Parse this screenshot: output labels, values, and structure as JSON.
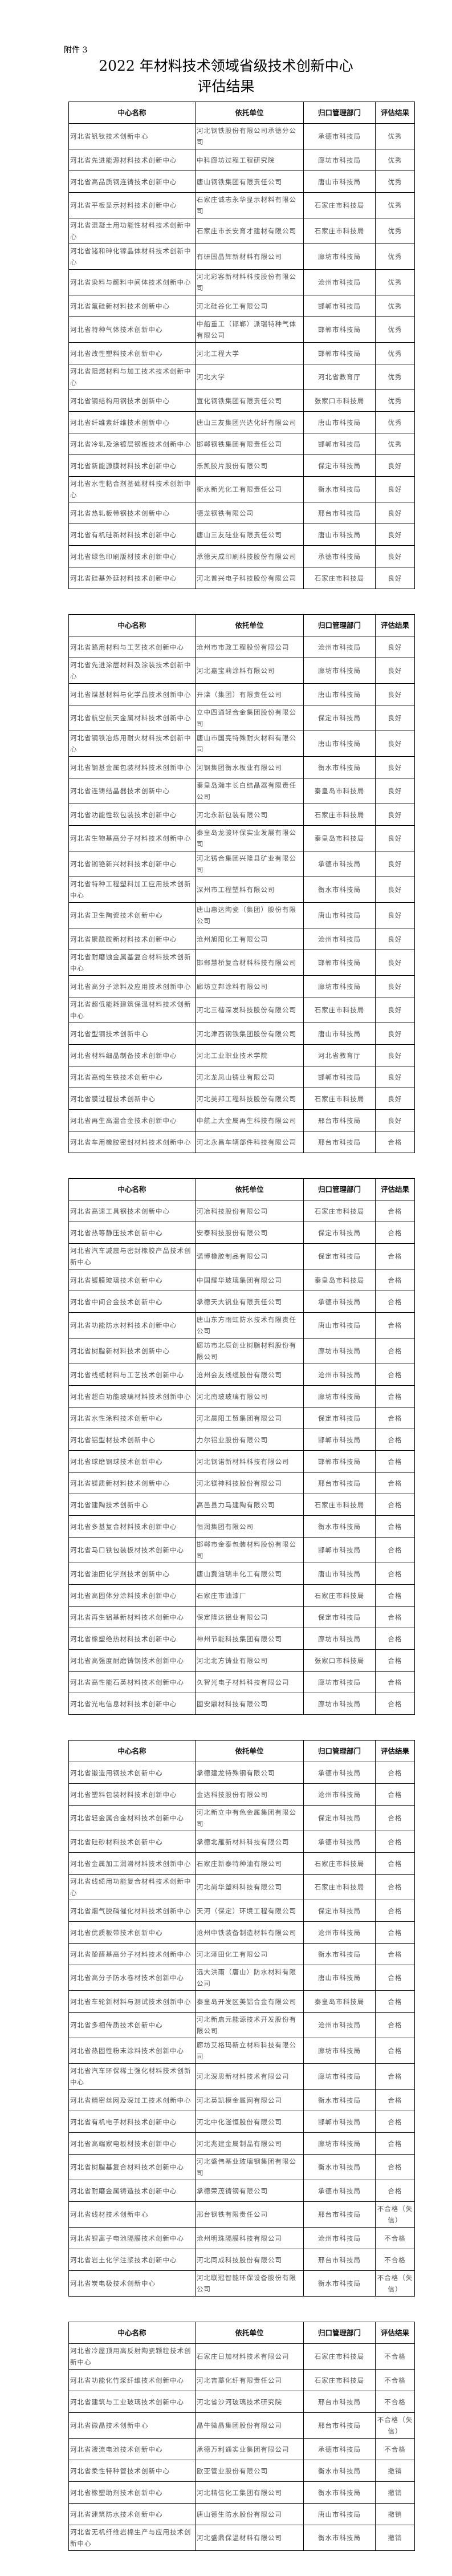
{
  "attachment": "附件 3",
  "title_line1": "2022 年材料技术领域省级技术创新中心",
  "title_line2": "评估结果",
  "headers": [
    "中心名称",
    "依托单位",
    "归口管理部门",
    "评估结果"
  ],
  "tables": [
    {
      "rows": [
        [
          "河北省钒钛技术创新中心",
          "河北钢铁股份有限公司承德分公司",
          "承德市科技局",
          "优秀"
        ],
        [
          "河北省先进能源材料技术创新中心",
          "中科廊坊过程工程研究院",
          "廊坊市科技局",
          "优秀"
        ],
        [
          "河北省高品质钢连铸技术创新中心",
          "唐山钢铁集团有限责任公司",
          "唐山市科技局",
          "优秀"
        ],
        [
          "河北省平板显示材料技术创新中心",
          "石家庄诚志永华显示材料有限公司",
          "石家庄市科技局",
          "优秀"
        ],
        [
          "河北省混凝土用功能性材料技术创新中心",
          "石家庄市长安育才建材有限公司",
          "石家庄市科技局",
          "优秀"
        ],
        [
          "河北省锗和砷化镓晶体材料技术创新中心",
          "有研国晶辉新材料有限公司",
          "廊坊市科技局",
          "优秀"
        ],
        [
          "河北省染料与颜料中间体技术创新中心",
          "河北彩客新材料科技股份有限公司",
          "沧州市科技局",
          "优秀"
        ],
        [
          "河北省氟硅新材料技术创新中心",
          "河北硅谷化工有限公司",
          "邯郸市科技局",
          "优秀"
        ],
        [
          "河北省特种气体技术创新中心",
          "中船重工（邯郸）派瑞特种气体有限公司",
          "邯郸市科技局",
          "优秀"
        ],
        [
          "河北省改性塑料技术创新中心",
          "河北工程大学",
          "邯郸市科技局",
          "优秀"
        ],
        [
          "河北省阻燃材料与加工技术技术创新中心",
          "河北大学",
          "河北省教育厅",
          "优秀"
        ],
        [
          "河北省钢结构用钢技术创新中心",
          "宣化钢铁集团有限责任公司",
          "张家口市科技局",
          "优秀"
        ],
        [
          "河北省纤维素纤维技术创新中心",
          "唐山三友集团兴达化纤有限公司",
          "唐山市科技局",
          "优秀"
        ],
        [
          "河北省冷轧及涂镀层钢板技术创新中心",
          "邯郸钢铁集团有限责任公司",
          "邯郸市科技局",
          "优秀"
        ],
        [
          "河北省新能源膜材料技术创新中心",
          "乐凯胶片股份有限公司",
          "保定市科技局",
          "良好"
        ],
        [
          "河北省水性粘合剂基础材料技术创新中心",
          "衡水新光化工有限责任公司",
          "衡水市科技局",
          "良好"
        ],
        [
          "河北省热轧板带钢技术创新中心",
          "德龙钢铁有限公司",
          "邢台市科技局",
          "良好"
        ],
        [
          "河北省有机硅新材料技术创新中心",
          "唐山三友硅业有限责任公司",
          "唐山市科技局",
          "良好"
        ],
        [
          "河北省绿色印刷版材技术创新中心",
          "承德天成印刷科技股份有限公司",
          "承德市科技局",
          "良好"
        ],
        [
          "河北省硅基外延材料技术创新中心",
          "河北普兴电子科技股份有限公司",
          "石家庄市科技局",
          "良好"
        ]
      ]
    },
    {
      "rows": [
        [
          "河北省路用材料与工艺技术创新中心",
          "沧州市市政工程股份有限公司",
          "沧州市科技局",
          "良好"
        ],
        [
          "河北省先进涂层材料及涂装技术创新中心",
          "河北嘉宝莉涂料有限公司",
          "廊坊市科技局",
          "良好"
        ],
        [
          "河北省煤基材料与化学品技术创新中心",
          "开滦（集团）有限责任公司",
          "唐山市科技局",
          "良好"
        ],
        [
          "河北省航空航天金属材料技术创新中心",
          "立中四通轻合金集团股份有限公司",
          "保定市科技局",
          "良好"
        ],
        [
          "河北省钢铁冶炼用耐火材料技术创新中心",
          "唐山市国亮特殊耐火材料有限公司",
          "唐山市科技局",
          "良好"
        ],
        [
          "河北省钢基金属包装材料技术创新中心",
          "河钢集团衡水板业有限公司",
          "衡水市科技局",
          "良好"
        ],
        [
          "河北省连铸结晶器技术创新中心",
          "秦皇岛瀚丰长白结晶器有限责任公司",
          "秦皇岛市科技局",
          "良好"
        ],
        [
          "河北省功能性软包装技术创新中心",
          "河北永新包装有限公司",
          "石家庄市科技局",
          "良好"
        ],
        [
          "河北省生物基高分子材料技术创新中心",
          "秦皇岛龙骏环保实业发展有限公司",
          "秦皇岛市科技局",
          "良好"
        ],
        [
          "河北省铷铯新兴材料技术创新中心",
          "河北铸合集团兴隆县矿业有限公司",
          "承德市科技局",
          "良好"
        ],
        [
          "河北省特种工程塑料加工应用技术创新中心",
          "深州市工程塑料有限公司",
          "衡水市科技局",
          "良好"
        ],
        [
          "河北省卫生陶瓷技术创新中心",
          "唐山惠达陶瓷（集团）股份有限公司",
          "唐山市科技局",
          "良好"
        ],
        [
          "河北省聚酰胺新材料技术创新中心",
          "沧州旭阳化工有限公司",
          "沧州市科技局",
          "良好"
        ],
        [
          "河北省耐磨蚀金属基复合材料技术创新中心",
          "邯郸慧桥复合材料科技有限公司",
          "邯郸市科技局",
          "良好"
        ],
        [
          "河北省高分子涂料及应用技术创新中心",
          "廊坊立邦涂料有限公司",
          "廊坊市科技局",
          "良好"
        ],
        [
          "河北省超低能耗建筑保温材料技术创新中心",
          "河北三楷深发科技股份有限公司",
          "石家庄市科技局",
          "良好"
        ],
        [
          "河北省型钢技术创新中心",
          "河北津西钢铁集团股份有限公司",
          "唐山市科技局",
          "良好"
        ],
        [
          "河北省材料细晶制备技术创新中心",
          "河北工业职业技术学院",
          "河北省教育厅",
          "良好"
        ],
        [
          "河北省高纯生铁技术创新中心",
          "河北龙凤山铸业有限公司",
          "邯郸市科技局",
          "良好"
        ],
        [
          "河北省膜过程技术创新中心",
          "河北美邦工程科技股份有限公司",
          "石家庄市科技局",
          "良好"
        ],
        [
          "河北省再生高温合金技术创新中心",
          "中航上大金属再生科技有限公司",
          "邢台市科技局",
          "良好"
        ],
        [
          "河北省车用橡胶密封材料技术创新中心",
          "河北永昌车辆部件科技有限公司",
          "邢台市科技局",
          "合格"
        ]
      ]
    },
    {
      "rows": [
        [
          "河北省高速工具钢技术创新中心",
          "河冶科技股份有限公司",
          "石家庄市科技局",
          "合格"
        ],
        [
          "河北省热等静压技术创新中心",
          "安泰科技股份有限公司",
          "保定市科技局",
          "合格"
        ],
        [
          "河北省汽车减震与密封橡胶产品技术创新中心",
          "诺博橡胶制品有限公司",
          "保定市科技局",
          "合格"
        ],
        [
          "河北省镀膜玻璃技术创新中心",
          "中国耀华玻璃集团有限公司",
          "秦皇岛市科技局",
          "合格"
        ],
        [
          "河北省中间合金技术创新中心",
          "承德天大钒业有限责任公司",
          "承德市科技局",
          "合格"
        ],
        [
          "河北省功能防水材料技术创新中心",
          "唐山东方雨虹防水技术有限责任公司",
          "唐山市科技局",
          "合格"
        ],
        [
          "河北省树脂新材料技术创新中心",
          "廊坊市北辰创业树脂材料股份有限公司",
          "廊坊市科技局",
          "合格"
        ],
        [
          "河北省线缆材料与工艺技术创新中心",
          "沧州会友线缆股份有限公司",
          "沧州市科技局",
          "合格"
        ],
        [
          "河北省超白功能玻璃材料技术创新中心",
          "河北南玻玻璃有限公司",
          "廊坊市科技局",
          "合格"
        ],
        [
          "河北省水性涂料技术创新中心",
          "河北晨阳工贸集团有限公司",
          "保定市科技局",
          "合格"
        ],
        [
          "河北省铝型材技术创新中心",
          "力尔铝业股份有限公司",
          "邯郸市科技局",
          "合格"
        ],
        [
          "河北省球磨钢球技术创新中心",
          "河北钢诺新材料科技有限公司",
          "邯郸市科技局",
          "合格"
        ],
        [
          "河北省镁质新材料技术创新中心",
          "河北镁神科技股份有限公司",
          "邢台市科技局",
          "合格"
        ],
        [
          "河北省建陶技术创新中心",
          "高邑县力马建陶有限公司",
          "石家庄市科技局",
          "合格"
        ],
        [
          "河北省多基复合材料技术创新中心",
          "恒润集团有限公司",
          "衡水市科技局",
          "合格"
        ],
        [
          "河北省马口铁包装板材技术创新中心",
          "邯郸市金泰包装材料股份有限公司",
          "邯郸市科技局",
          "合格"
        ],
        [
          "河北省油田化学剂技术创新中心",
          "唐山冀油瑞丰化工有限公司",
          "唐山市科技局",
          "合格"
        ],
        [
          "河北省高固体分涂料技术创新中心",
          "石家庄市油漆厂",
          "石家庄市科技局",
          "合格"
        ],
        [
          "河北省再生铝基新材料技术创新中心",
          "保定隆达铝业有限公司",
          "保定市科技局",
          "合格"
        ],
        [
          "河北省橡塑绝热材料技术创新中心",
          "神州节能科技集团有限公司",
          "廊坊市科技局",
          "合格"
        ],
        [
          "河北省高强度耐磨铸钢技术创新中心",
          "河北北方铸业有限公司",
          "张家口市科技局",
          "合格"
        ],
        [
          "河北省高性能石英材料技术创新中心",
          "久智光电子材料科技有限公司",
          "廊坊市科技局",
          "合格"
        ],
        [
          "河北省光电信息材料技术创新中心",
          "固安鼎材科技有限公司",
          "廊坊市科技局",
          "合格"
        ]
      ]
    },
    {
      "rows": [
        [
          "河北省锻造用钢技术创新中心",
          "承德建龙特殊钢有限公司",
          "承德市科技局",
          "合格"
        ],
        [
          "河北省塑料包装材料技术创新中心",
          "金达科技股份有限公司",
          "沧州市科技局",
          "合格"
        ],
        [
          "河北省轻金属合金材料技术创新中心",
          "河北新立中有色金属集团有限公司",
          "保定市科技局",
          "合格"
        ],
        [
          "河北省硅砂材料技术创新中心",
          "承德北雁新材料科技有限公司",
          "承德市科技局",
          "合格"
        ],
        [
          "河北省金属加工润滑材料技术创新中心",
          "石家庄新泰特种油有限公司",
          "石家庄市科技局",
          "合格"
        ],
        [
          "河北省线缆用功能复合材料技术创新中心",
          "河北尚华塑料科技有限公司",
          "石家庄市科技局",
          "合格"
        ],
        [
          "河北省烟气脱硝催化材料技术创新中心",
          "天河（保定）环境工程有限公司",
          "保定市科技局",
          "合格"
        ],
        [
          "河北省优质板带技术创新中心",
          "沧州中铁装备制造材料有限公司",
          "沧州市科技局",
          "合格"
        ],
        [
          "河北省酚醛基高分子材料技术创新中心",
          "河北泽田化工有限公司",
          "衡水市科技局",
          "合格"
        ],
        [
          "河北省高分子防水卷材技术创新中心",
          "远大洪雨（唐山）防水材料有限公司",
          "唐山市科技局",
          "合格"
        ],
        [
          "河北省车轮新材料与测试技术创新中心",
          "秦皇岛开发区美铝合金有限公司",
          "秦皇岛市科技局",
          "合格"
        ],
        [
          "河北省多相传质技术创新中心",
          "河北新启元能源技术开发股份有限公司",
          "沧州市科技局",
          "合格"
        ],
        [
          "河北省热固性粉末涂料技术创新中心",
          "廊坊艾格玛新立材料科技有限公司",
          "廊坊市科技局",
          "合格"
        ],
        [
          "河北省汽车环保稀土强化材料技术创新中心",
          "河北深思新材料技术有限公司",
          "廊坊市科技局",
          "合格"
        ],
        [
          "河北省精密丝网及深加工技术创新中心",
          "河北英凯模金属网有限公司",
          "衡水市科技局",
          "合格"
        ],
        [
          "河北省有机电子材料技术创新中心",
          "河北中化滏恒股份有限公司",
          "邯郸市科技局",
          "合格"
        ],
        [
          "河北省高端家电板材技术创新中心",
          "河北兆建金属制品有限公司",
          "廊坊市科技局",
          "合格"
        ],
        [
          "河北省树脂基复合材料技术创新中心",
          "河北盛伟基业玻璃钢集团有限公司",
          "衡水市科技局",
          "合格"
        ],
        [
          "河北省耐磨金属铸造技术创新中心",
          "承德荣茂铸钢有限公司",
          "承德市科技局",
          "合格"
        ],
        [
          "河北省线材技术创新中心",
          "邢台钢铁有限责任公司",
          "邢台市科技局",
          "不合格（失信）"
        ],
        [
          "河北省锂离子电池隔膜技术创新中心",
          "沧州明珠隔膜科技有限公司",
          "沧州市科技局",
          "不合格"
        ],
        [
          "河北省岩土化学注浆技术创新中心",
          "河北同成科技股份有限公司",
          "邢台市科技局",
          "不合格"
        ],
        [
          "河北省炭电极技术创新中心",
          "河北联冠智能环保设备股份有限公司",
          "衡水市科技局",
          "不合格（失信）"
        ]
      ]
    },
    {
      "rows": [
        [
          "河北省冷屋顶用高反射陶瓷颗粒技术创新中心",
          "石家庄日加材料技术有限公司",
          "石家庄市科技局",
          "不合格"
        ],
        [
          "河北省功能化竹浆纤维技术创新中心",
          "河北吉藁化纤有限责任公司",
          "石家庄市科技局",
          "不合格"
        ],
        [
          "河北省建筑与工业玻璃技术创新中心",
          "河北省沙河玻璃技术研究院",
          "邢台市科技局",
          "不合格"
        ],
        [
          "河北省微晶技术创新中心",
          "晶牛微晶集团股份有限公司",
          "邢台市科技局",
          "不合格（失信）"
        ],
        [
          "河北省液流电池技术创新中心",
          "承德万利通实业集团有限公司",
          "承德市科技局",
          "不合格"
        ],
        [
          "河北省柔性特种管技术创新中心",
          "欧亚管业股份有限公司",
          "衡水市科技局",
          "撤销"
        ],
        [
          "河北省橡塑助剂技术创新中心",
          "河北精信化工集团有限公司",
          "衡水市科技局",
          "撤销"
        ],
        [
          "河北省建筑防水技术创新中心",
          "唐山德生防水股份有限公司",
          "唐山市科技局",
          "撤销"
        ],
        [
          "河北省无机纤维岩棉生产与应用技术创新中心",
          "河北盛鼎保温材料有限公司",
          "衡水市科技局",
          "撤销"
        ]
      ]
    }
  ]
}
